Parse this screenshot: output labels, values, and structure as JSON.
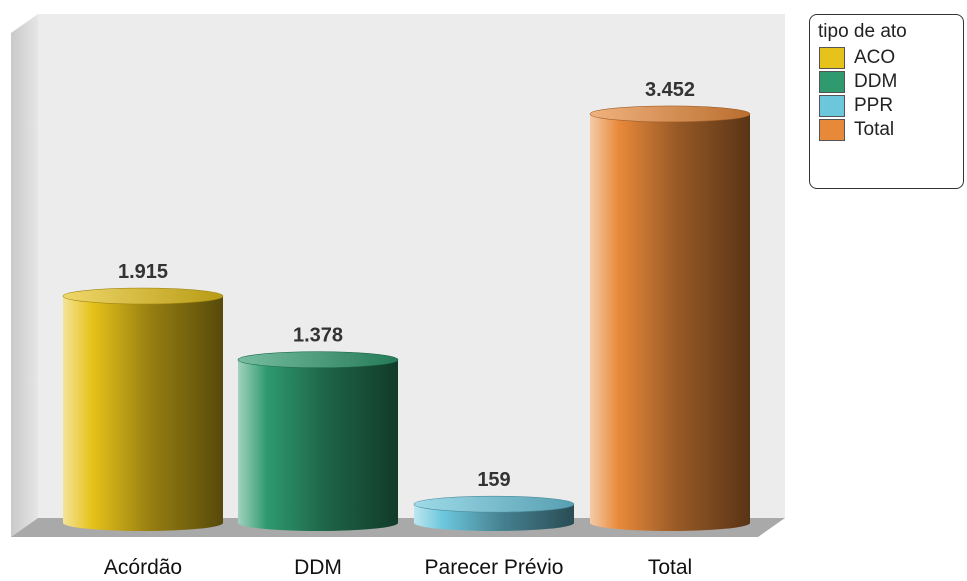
{
  "chart_data": {
    "type": "bar",
    "categories": [
      "Acórdão",
      "DDM",
      "Parecer Prévio",
      "Total"
    ],
    "values": [
      1915,
      1378,
      159,
      3452
    ],
    "value_labels": [
      "1.915",
      "1.378",
      "159",
      "3.452"
    ],
    "colors": [
      "#e6c21a",
      "#2e9a6e",
      "#6cc7dd",
      "#e8893a"
    ],
    "title": "",
    "xlabel": "",
    "ylabel": "",
    "ylim": [
      0,
      3800
    ],
    "grid": false,
    "legend": {
      "title": "tipo de ato",
      "position": "top-right",
      "items": [
        {
          "label": "ACO",
          "color": "#e6c21a"
        },
        {
          "label": "DDM",
          "color": "#2e9a6e"
        },
        {
          "label": "PPR",
          "color": "#6cc7dd"
        },
        {
          "label": "Total",
          "color": "#e8893a"
        }
      ]
    }
  }
}
